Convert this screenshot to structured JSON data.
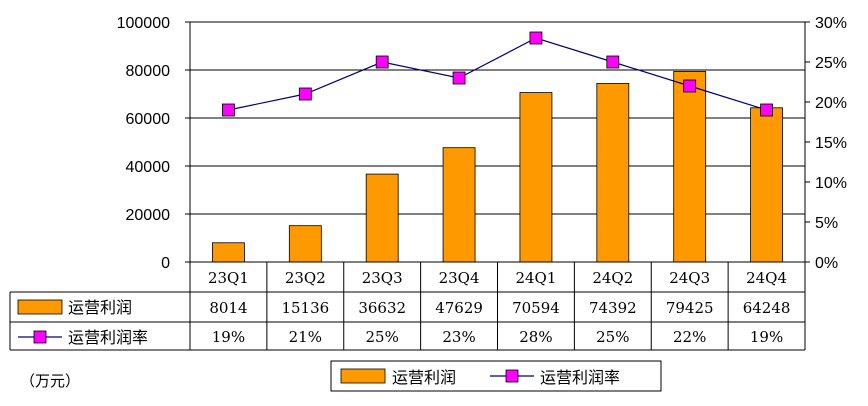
{
  "chart_data": {
    "type": "bar",
    "categories": [
      "23Q1",
      "23Q2",
      "23Q3",
      "23Q4",
      "24Q1",
      "24Q2",
      "24Q3",
      "24Q4"
    ],
    "series": [
      {
        "name": "运营利润",
        "type": "bar",
        "axis": "left",
        "values": [
          8014,
          15136,
          36632,
          47629,
          70594,
          74392,
          79425,
          64248
        ],
        "color": "#FF9900"
      },
      {
        "name": "运营利润率",
        "type": "line",
        "axis": "right",
        "values": [
          19,
          21,
          25,
          23,
          28,
          25,
          22,
          19
        ],
        "display": [
          "19%",
          "21%",
          "25%",
          "23%",
          "28%",
          "25%",
          "22%",
          "19%"
        ],
        "color": "#000080",
        "marker_color": "#FF00FF"
      }
    ],
    "ylim_left": [
      0,
      100000
    ],
    "yticks_left": [
      "0",
      "20000",
      "40000",
      "60000",
      "80000",
      "100000"
    ],
    "ylim_right": [
      0,
      30
    ],
    "yticks_right": [
      "0%",
      "5%",
      "10%",
      "15%",
      "20%",
      "25%",
      "30%"
    ],
    "unit_label": "（万元）",
    "grid": true,
    "legend_position": "bottom",
    "data_table": true
  }
}
